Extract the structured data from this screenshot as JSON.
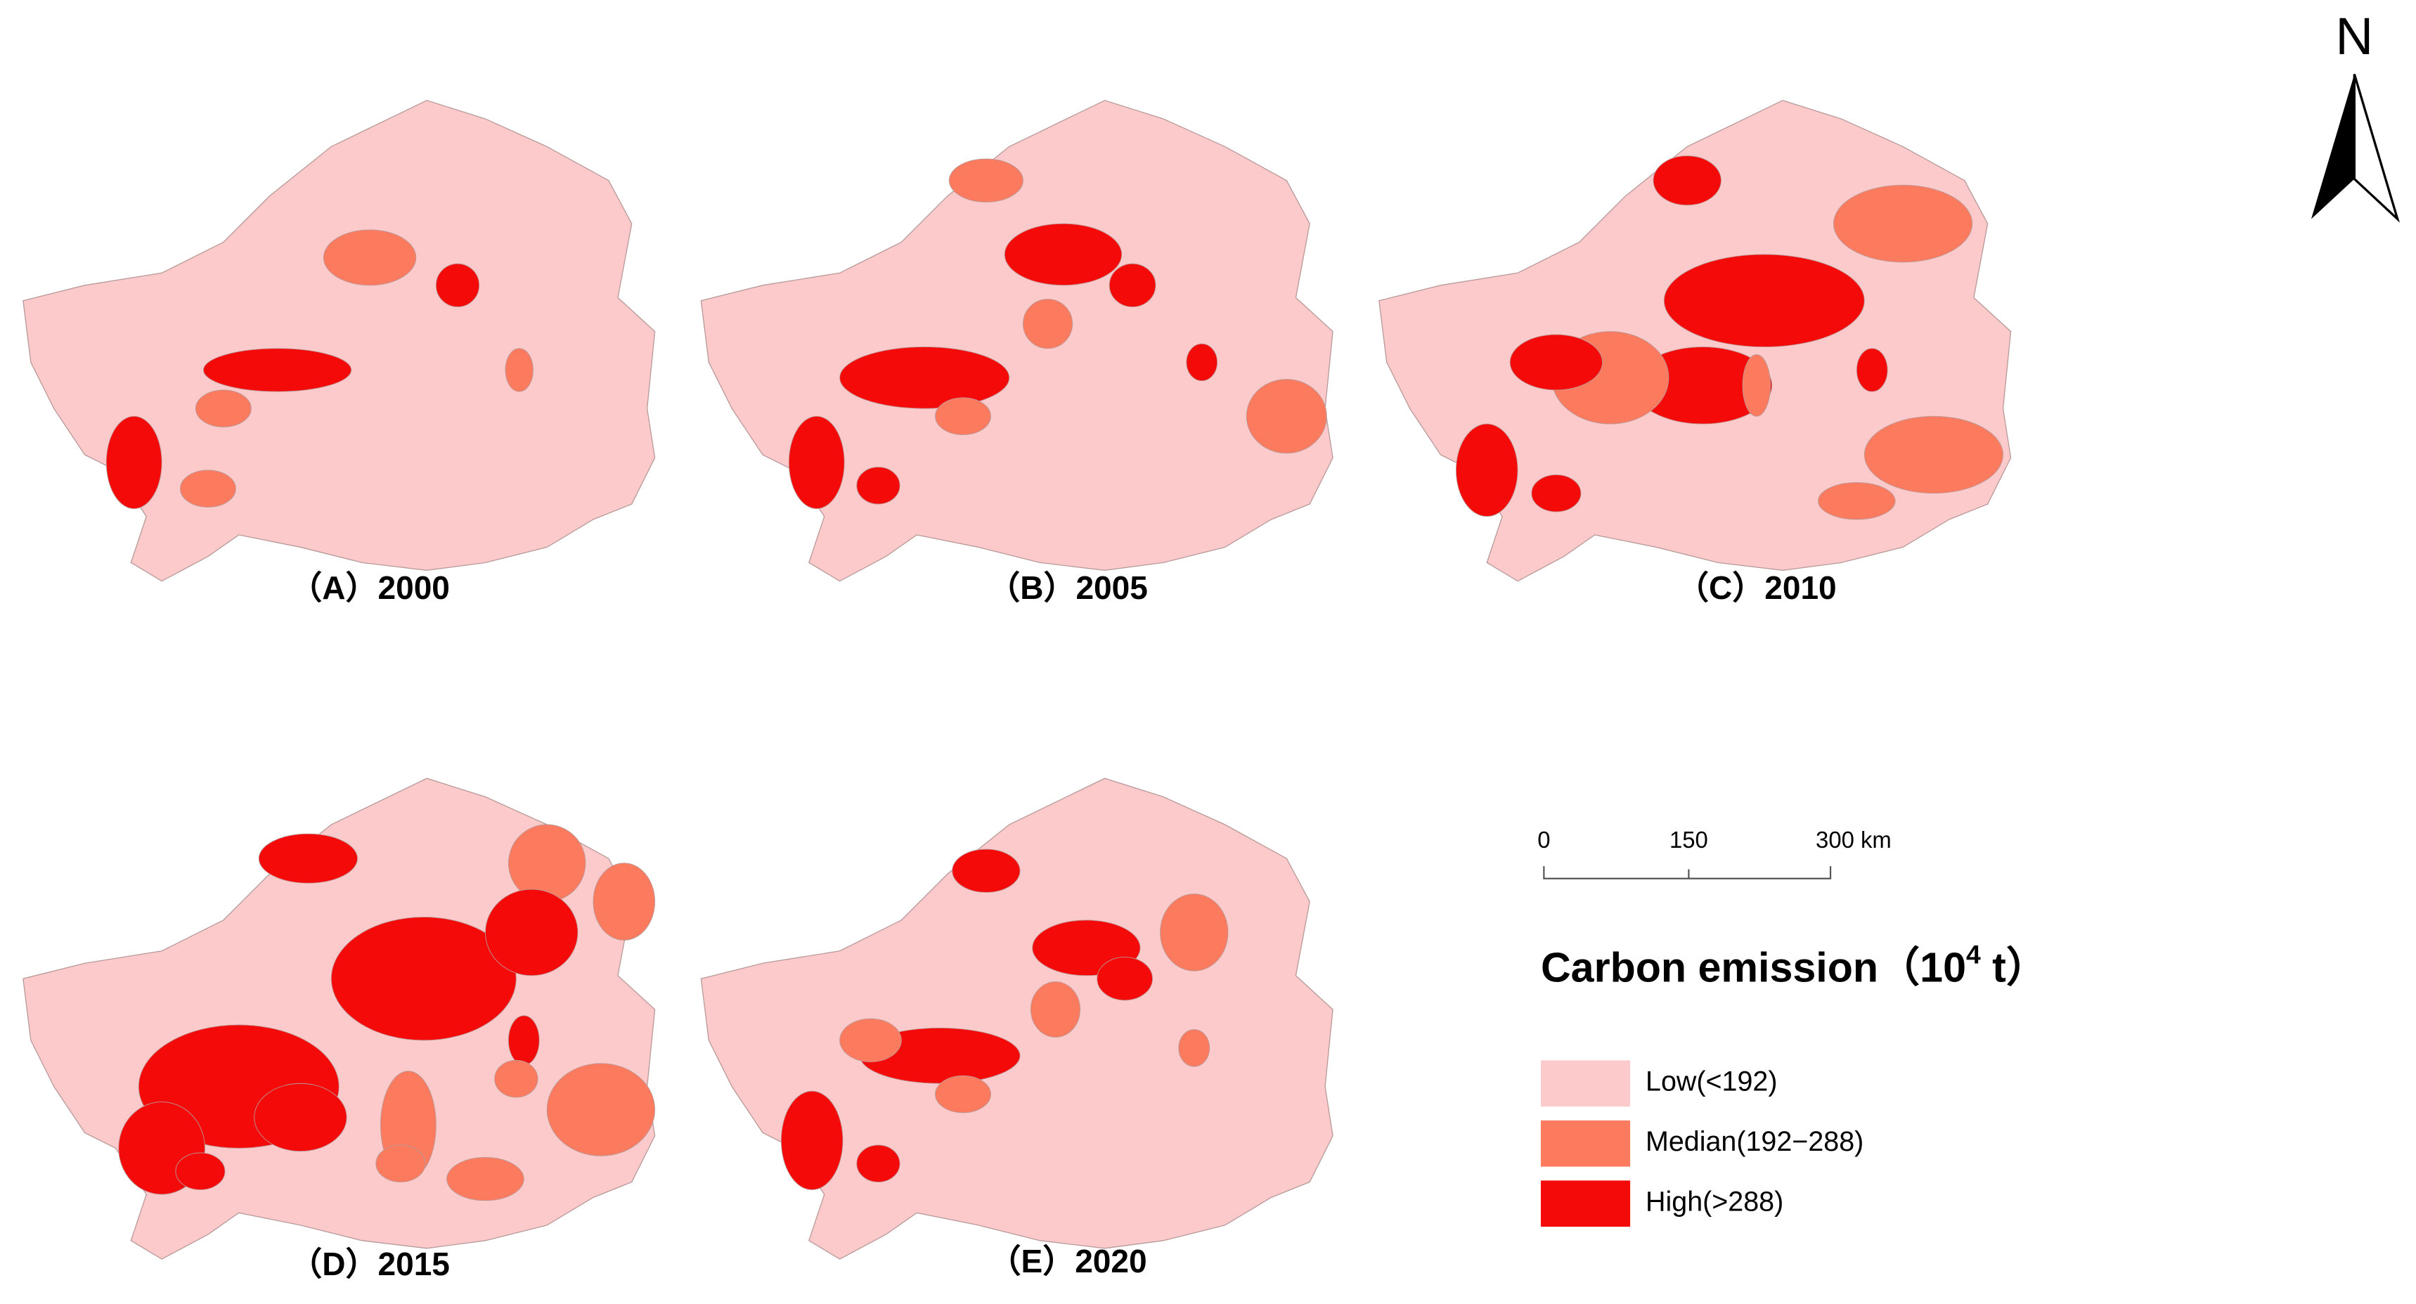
{
  "north_label": "N",
  "panels": [
    {
      "label": "（A）2000"
    },
    {
      "label": "（B）2005"
    },
    {
      "label": "（C）2010"
    },
    {
      "label": "（D）2015"
    },
    {
      "label": "（E）2020"
    }
  ],
  "scale_bar": {
    "ticks": [
      "0",
      "150",
      "300 km"
    ]
  },
  "legend": {
    "title": "Carbon emission（10",
    "title_superscript": "4",
    "title_end": " t）",
    "items": [
      {
        "label": "Low(<192)",
        "color": "#fccaca"
      },
      {
        "label": "Median(192−288)",
        "color": "#fc7a5e"
      },
      {
        "label": "High(>288)",
        "color": "#f50a0a"
      }
    ]
  }
}
